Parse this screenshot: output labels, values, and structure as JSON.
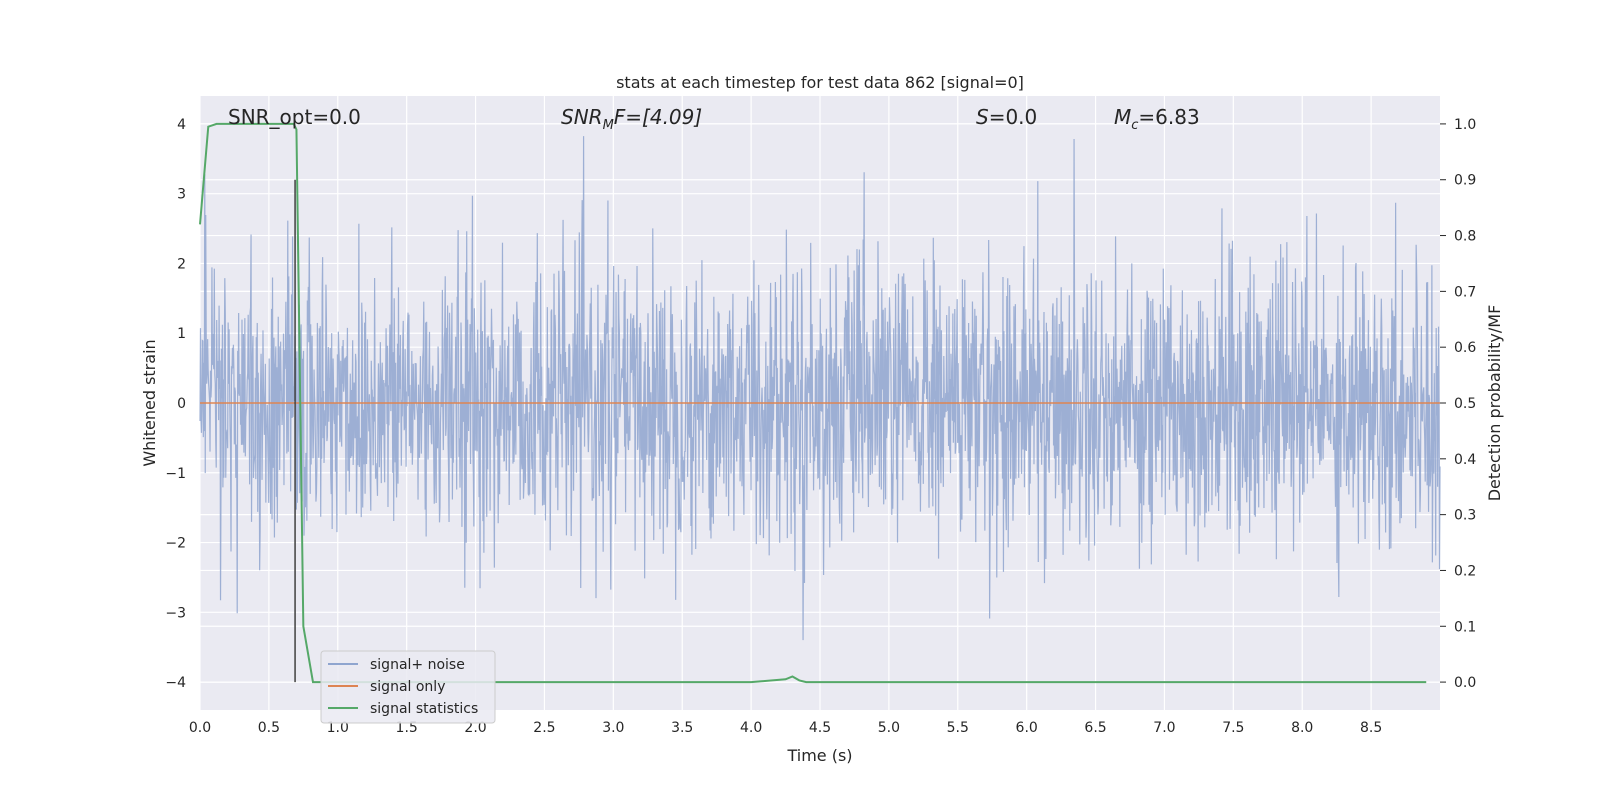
{
  "chart_data": {
    "type": "line",
    "title": "stats at each timestep for test data 862 [signal=0]",
    "xlabel": "Time (s)",
    "ylabel_left": "Whitened strain",
    "ylabel_right": "Detection probability/MF",
    "xlim": [
      0.0,
      9.0
    ],
    "ylim_left": [
      -4.4,
      4.4
    ],
    "ylim_right": [
      -0.05,
      1.05
    ],
    "x_ticks": [
      "0.0",
      "0.5",
      "1.0",
      "1.5",
      "2.0",
      "2.5",
      "3.0",
      "3.5",
      "4.0",
      "4.5",
      "5.0",
      "5.5",
      "6.0",
      "6.5",
      "7.0",
      "7.5",
      "8.0",
      "8.5"
    ],
    "y_left_ticks": [
      "4",
      "3",
      "2",
      "1",
      "0",
      "−1",
      "−2",
      "−3",
      "−4"
    ],
    "y_right_ticks": [
      "1.0",
      "0.9",
      "0.8",
      "0.7",
      "0.6",
      "0.5",
      "0.4",
      "0.3",
      "0.2",
      "0.1",
      "0.0"
    ],
    "grid": true,
    "legend_position": "bottom-left",
    "annotations": {
      "snr_opt": "SNR_opt=0.0",
      "snr_mf_prefix": "SNR",
      "snr_mf_sub": "M",
      "snr_mf_suffix": "F=[4.09]",
      "s_label_italic": "S",
      "s_label_rest": "=0.0",
      "mc_label_italic": "M",
      "mc_label_sub": "c",
      "mc_label_rest": "=6.83"
    },
    "series": [
      {
        "name": "signal+ noise",
        "color": "#8fa5cf",
        "axis": "left",
        "description_stats": {
          "noise_sigma": 1.0,
          "x_start": 0.0,
          "x_end": 9.0,
          "approx_max": 4.0,
          "approx_min": -4.0
        }
      },
      {
        "name": "signal only",
        "color": "#dd8452",
        "axis": "left",
        "x": [
          0.0,
          9.0
        ],
        "y": [
          0.0,
          0.0
        ]
      },
      {
        "name": "signal statistics",
        "color": "#55a868",
        "axis": "right",
        "x": [
          0.0,
          0.06,
          0.12,
          0.2,
          0.3,
          0.4,
          0.5,
          0.6,
          0.68,
          0.7,
          0.75,
          0.82,
          0.9,
          1.0,
          2.0,
          3.0,
          4.0,
          4.25,
          4.3,
          4.35,
          4.4,
          5.0,
          6.0,
          7.0,
          8.0,
          8.6,
          8.9
        ],
        "y": [
          0.82,
          0.995,
          1.0,
          1.0,
          1.0,
          1.0,
          1.0,
          1.0,
          1.0,
          0.99,
          0.1,
          0.0,
          0.0,
          0.0,
          0.0,
          0.0,
          0.0,
          0.005,
          0.01,
          0.003,
          0.0,
          0.0,
          0.0,
          0.0,
          0.0,
          0.0,
          0.0
        ]
      }
    ],
    "vertical_line": {
      "x": 0.69,
      "color": "#404040"
    }
  }
}
